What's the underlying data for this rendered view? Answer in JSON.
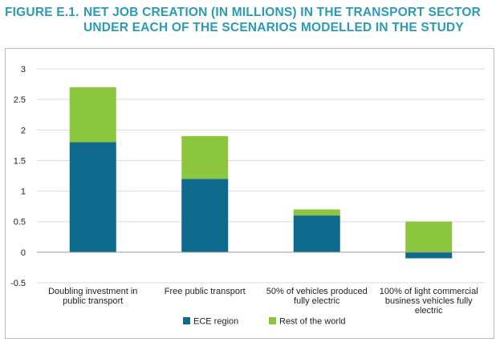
{
  "figure": {
    "label": "FIGURE E.1.",
    "title_line1": "NET JOB CREATION (IN MILLIONS) IN THE TRANSPORT SECTOR",
    "title_line2": "UNDER EACH OF THE SCENARIOS MODELLED IN THE STUDY"
  },
  "chart_data": {
    "type": "bar",
    "stacked": true,
    "title": "NET JOB CREATION (IN MILLIONS) IN THE TRANSPORT SECTOR UNDER EACH OF THE SCENARIOS MODELLED IN THE STUDY",
    "xlabel": "",
    "ylabel": "",
    "ylim": [
      -0.5,
      3
    ],
    "yticks": [
      "3",
      "2.5",
      "2",
      "1.5",
      "1",
      "0.5",
      "0",
      "-0.5"
    ],
    "grid": true,
    "legend_position": "bottom",
    "categories": [
      [
        "Doubling investment in",
        "public transport"
      ],
      [
        "Free public transport"
      ],
      [
        "50% of vehicles produced",
        "fully electric"
      ],
      [
        "100% of light commercial",
        "business vehicles fully",
        "electric"
      ]
    ],
    "series": [
      {
        "name": "ECE region",
        "color": "#0e6a8c",
        "values": [
          1.8,
          1.2,
          0.6,
          -0.1
        ]
      },
      {
        "name": "Rest of the world",
        "color": "#8cc63f",
        "values": [
          0.9,
          0.7,
          0.1,
          0.5
        ]
      }
    ]
  }
}
